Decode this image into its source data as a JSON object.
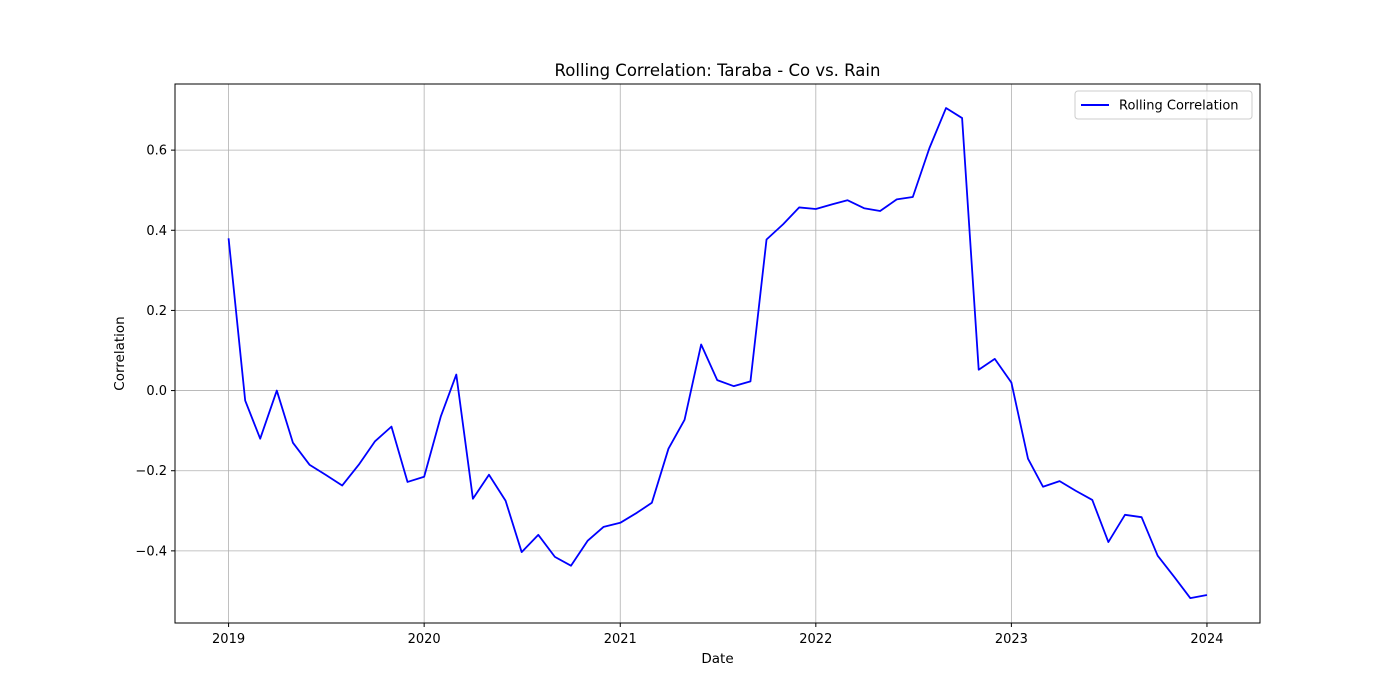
{
  "chart_data": {
    "type": "line",
    "title": "Rolling Correlation: Taraba - Co vs. Rain",
    "xlabel": "Date",
    "ylabel": "Correlation",
    "xlim": [
      "2018-09-23",
      "2024-04-09"
    ],
    "ylim": [
      -0.58,
      0.765
    ],
    "grid": true,
    "legend_position": "top-right",
    "x_ticks": [
      "2019",
      "2020",
      "2021",
      "2022",
      "2023",
      "2024"
    ],
    "y_ticks": [
      "−0.4",
      "−0.2",
      "0.0",
      "0.2",
      "0.4",
      "0.6"
    ],
    "series": [
      {
        "name": "Rolling Correlation",
        "color": "#0000ff",
        "x": [
          "2019-01-01",
          "2019-02-01",
          "2019-03-01",
          "2019-04-01",
          "2019-05-01",
          "2019-06-01",
          "2019-07-01",
          "2019-08-01",
          "2019-09-01",
          "2019-10-01",
          "2019-11-01",
          "2019-12-01",
          "2020-01-01",
          "2020-02-01",
          "2020-03-01",
          "2020-04-01",
          "2020-05-01",
          "2020-06-01",
          "2020-07-01",
          "2020-08-01",
          "2020-09-01",
          "2020-10-01",
          "2020-11-01",
          "2020-12-01",
          "2021-01-01",
          "2021-02-01",
          "2021-03-01",
          "2021-04-01",
          "2021-05-01",
          "2021-06-01",
          "2021-07-01",
          "2021-08-01",
          "2021-09-01",
          "2021-10-01",
          "2021-11-01",
          "2021-12-01",
          "2022-01-01",
          "2022-02-01",
          "2022-03-01",
          "2022-04-01",
          "2022-05-01",
          "2022-06-01",
          "2022-07-01",
          "2022-08-01",
          "2022-09-01",
          "2022-10-01",
          "2022-11-01",
          "2022-12-01",
          "2023-01-01",
          "2023-02-01",
          "2023-03-01",
          "2023-04-01",
          "2023-05-01",
          "2023-06-01",
          "2023-07-01",
          "2023-08-01",
          "2023-09-01",
          "2023-10-01",
          "2023-11-01",
          "2023-12-01",
          "2024-01-01"
        ],
        "values": [
          0.38,
          -0.025,
          -0.12,
          0.0,
          -0.13,
          -0.185,
          -0.21,
          -0.237,
          -0.185,
          -0.127,
          -0.09,
          -0.228,
          -0.215,
          -0.065,
          0.04,
          -0.27,
          -0.21,
          -0.275,
          -0.403,
          -0.36,
          -0.415,
          -0.437,
          -0.375,
          -0.34,
          -0.33,
          -0.305,
          -0.28,
          -0.145,
          -0.073,
          0.115,
          0.026,
          0.011,
          0.023,
          0.377,
          0.415,
          0.457,
          0.453,
          0.465,
          0.475,
          0.455,
          0.448,
          0.477,
          0.483,
          0.605,
          0.705,
          0.68,
          0.052,
          0.079,
          0.02,
          -0.17,
          -0.24,
          -0.226,
          -0.25,
          -0.273,
          -0.378,
          -0.31,
          -0.316,
          -0.412,
          -0.465,
          -0.518,
          -0.51
        ]
      }
    ]
  }
}
